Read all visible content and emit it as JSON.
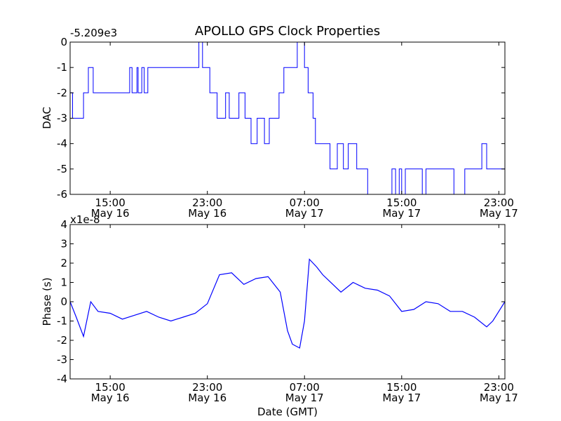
{
  "chart_data": [
    {
      "type": "line",
      "title": "APOLLO GPS Clock Properties",
      "ylabel": "DAC",
      "xlabel": "",
      "y_offset_label": "-5.209e3",
      "ylim": [
        -6,
        0
      ],
      "y_ticks": [
        "0",
        "-1",
        "-2",
        "-3",
        "-4",
        "-5",
        "-6"
      ],
      "x_ticks": [
        {
          "time": "15:00",
          "date": "May 16"
        },
        {
          "time": "23:00",
          "date": "May 16"
        },
        {
          "time": "07:00",
          "date": "May 17"
        },
        {
          "time": "15:00",
          "date": "May 17"
        },
        {
          "time": "23:00",
          "date": "May 17"
        }
      ],
      "xlim_hours": [
        11.7,
        47.5
      ],
      "line_color": "#0000ff",
      "series": [
        {
          "name": "DAC",
          "x_hours": [
            11.7,
            11.9,
            12.3,
            12.8,
            13.2,
            13.6,
            16.6,
            16.8,
            17.2,
            17.3,
            17.6,
            17.8,
            18.1,
            18.4,
            18.9,
            21.8,
            22.3,
            22.6,
            23.2,
            23.6,
            23.8,
            24.5,
            24.8,
            25.2,
            25.6,
            26.1,
            26.6,
            27.1,
            27.7,
            28.1,
            28.9,
            29.3,
            30.4,
            31.0,
            31.3,
            31.7,
            31.9,
            32.3,
            33.1,
            33.7,
            34.2,
            34.6,
            35.3,
            35.8,
            36.2,
            38.2,
            38.5,
            38.8,
            39.0,
            39.3,
            40.1,
            40.7,
            41.0,
            41.5,
            42.8,
            43.3,
            44.2,
            44.6,
            45.4,
            45.6,
            46.0,
            47.5
          ],
          "values": [
            -2,
            -3,
            -3,
            -2,
            -1,
            -2,
            -1,
            -2,
            -1,
            -2,
            -1,
            -2,
            -1,
            -1,
            -1,
            -1,
            0,
            -1,
            -2,
            -2,
            -3,
            -2,
            -3,
            -3,
            -2,
            -3,
            -4,
            -3,
            -4,
            -3,
            -2,
            -1,
            0,
            -1,
            -2,
            -3,
            -4,
            -4,
            -5,
            -4,
            -5,
            -4,
            -5,
            -5,
            -6,
            -5,
            -6,
            -5,
            -6,
            -5,
            -5,
            -6,
            -5,
            -5,
            -5,
            -6,
            -5,
            -5,
            -5,
            -4,
            -5,
            -5
          ]
        }
      ]
    },
    {
      "type": "line",
      "title": "",
      "ylabel": "Phase (s)",
      "xlabel": "Date (GMT)",
      "y_offset_label": "x1e-8",
      "ylim": [
        -4,
        4
      ],
      "y_ticks": [
        "4",
        "3",
        "2",
        "1",
        "0",
        "-1",
        "-2",
        "-3",
        "-4"
      ],
      "x_ticks": [
        {
          "time": "15:00",
          "date": "May 16"
        },
        {
          "time": "23:00",
          "date": "May 16"
        },
        {
          "time": "07:00",
          "date": "May 17"
        },
        {
          "time": "15:00",
          "date": "May 17"
        },
        {
          "time": "23:00",
          "date": "May 17"
        }
      ],
      "xlim_hours": [
        11.7,
        47.5
      ],
      "line_color": "#0000ff",
      "series": [
        {
          "name": "Phase",
          "x_hours": [
            11.7,
            12.2,
            12.8,
            13.4,
            14.0,
            15.0,
            16.0,
            17.0,
            18.0,
            19.0,
            20.0,
            21.0,
            22.0,
            23.0,
            24.0,
            25.0,
            26.0,
            27.0,
            28.0,
            29.0,
            29.6,
            30.0,
            30.6,
            31.0,
            31.4,
            32.0,
            32.5,
            33.0,
            34.0,
            35.0,
            36.0,
            37.0,
            38.0,
            39.0,
            40.0,
            41.0,
            42.0,
            43.0,
            44.0,
            45.0,
            46.0,
            46.5,
            47.0,
            47.5
          ],
          "values": [
            0.0,
            -0.8,
            -1.8,
            0.0,
            -0.5,
            -0.6,
            -0.9,
            -0.7,
            -0.5,
            -0.8,
            -1.0,
            -0.8,
            -0.6,
            -0.1,
            1.4,
            1.5,
            0.9,
            1.2,
            1.3,
            0.5,
            -1.5,
            -2.2,
            -2.4,
            -1.0,
            2.2,
            1.8,
            1.4,
            1.1,
            0.5,
            1.0,
            0.7,
            0.6,
            0.3,
            -0.5,
            -0.4,
            0.0,
            -0.1,
            -0.5,
            -0.5,
            -0.8,
            -1.3,
            -1.0,
            -0.5,
            0.0
          ]
        }
      ]
    }
  ]
}
